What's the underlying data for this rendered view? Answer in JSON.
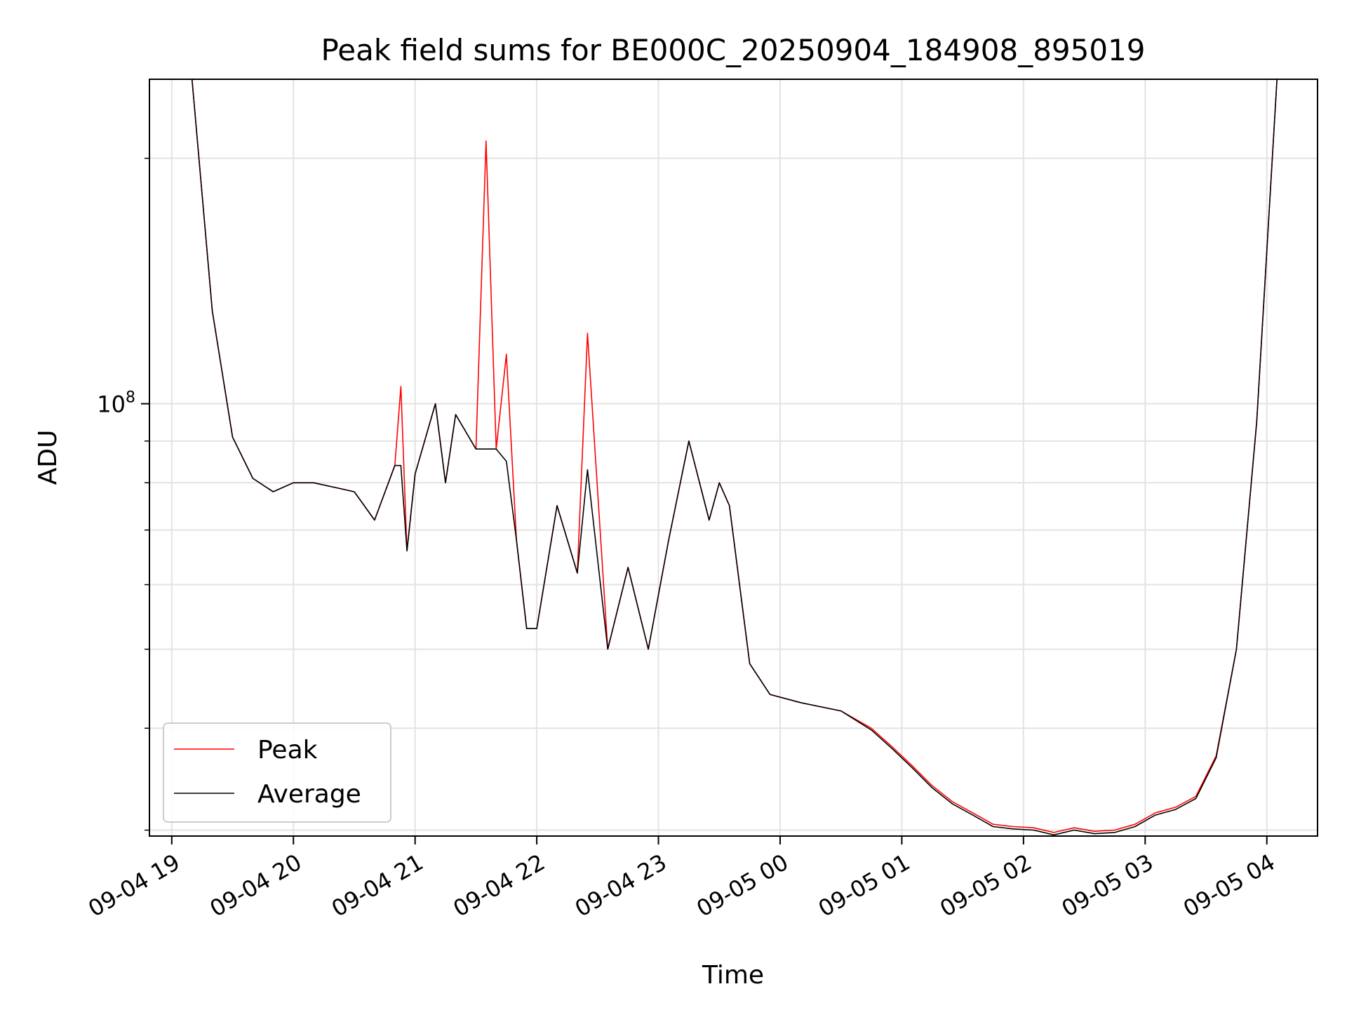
{
  "chart_data": {
    "type": "line",
    "title": "Peak field sums for BE000C_20250904_184908_895019",
    "xlabel": "Time",
    "ylabel": "ADU",
    "y_scale": "log",
    "grid": true,
    "legend_position": "lower-left",
    "x_ticks": [
      "09-04 19",
      "09-04 20",
      "09-04 21",
      "09-04 22",
      "09-04 23",
      "09-05 00",
      "09-05 01",
      "09-05 02",
      "09-05 03",
      "09-05 04"
    ],
    "y_tick_major": "10^8",
    "y_tick_major_value": 100000000,
    "y_ticks_minor": [
      30000000,
      40000000,
      50000000,
      60000000,
      70000000,
      80000000,
      90000000,
      200000000
    ],
    "ylim": [
      29500000,
      250000000
    ],
    "xlim": [
      "2025-09-04 18:49",
      "2025-09-05 04:25"
    ],
    "series": [
      {
        "name": "Peak",
        "color": "#ff0000",
        "x": [
          "2025-09-04 19:10",
          "2025-09-04 19:20",
          "2025-09-04 19:30",
          "2025-09-04 19:40",
          "2025-09-04 19:50",
          "2025-09-04 20:00",
          "2025-09-04 20:10",
          "2025-09-04 20:20",
          "2025-09-04 20:30",
          "2025-09-04 20:40",
          "2025-09-04 20:50",
          "2025-09-04 20:53",
          "2025-09-04 20:56",
          "2025-09-04 21:00",
          "2025-09-04 21:10",
          "2025-09-04 21:15",
          "2025-09-04 21:20",
          "2025-09-04 21:30",
          "2025-09-04 21:35",
          "2025-09-04 21:40",
          "2025-09-04 21:45",
          "2025-09-04 21:50",
          "2025-09-04 21:55",
          "2025-09-04 22:00",
          "2025-09-04 22:10",
          "2025-09-04 22:20",
          "2025-09-04 22:25",
          "2025-09-04 22:35",
          "2025-09-04 22:45",
          "2025-09-04 22:55",
          "2025-09-04 23:05",
          "2025-09-04 23:15",
          "2025-09-04 23:25",
          "2025-09-04 23:30",
          "2025-09-04 23:35",
          "2025-09-04 23:45",
          "2025-09-04 23:55",
          "2025-09-05 00:10",
          "2025-09-05 00:30",
          "2025-09-05 00:45",
          "2025-09-05 00:55",
          "2025-09-05 01:05",
          "2025-09-05 01:15",
          "2025-09-05 01:25",
          "2025-09-05 01:35",
          "2025-09-05 01:45",
          "2025-09-05 01:55",
          "2025-09-05 02:05",
          "2025-09-05 02:15",
          "2025-09-05 02:25",
          "2025-09-05 02:35",
          "2025-09-05 02:45",
          "2025-09-05 02:55",
          "2025-09-05 03:05",
          "2025-09-05 03:15",
          "2025-09-05 03:25",
          "2025-09-05 03:35",
          "2025-09-05 03:45",
          "2025-09-05 03:55",
          "2025-09-05 04:05"
        ],
        "values": [
          250000000,
          130000000,
          91000000,
          81000000,
          78000000,
          80000000,
          80000000,
          79000000,
          78000000,
          72000000,
          84000000,
          105000000,
          66000000,
          82000000,
          100000000,
          80000000,
          97000000,
          88000000,
          210000000,
          88000000,
          115000000,
          68000000,
          53000000,
          53000000,
          75000000,
          62000000,
          122000000,
          50000000,
          63000000,
          50000000,
          68000000,
          90000000,
          72000000,
          80000000,
          75000000,
          48000000,
          44000000,
          43000000,
          42000000,
          40000000,
          38000000,
          36000000,
          34000000,
          32500000,
          31500000,
          30500000,
          30300000,
          30200000,
          29800000,
          30200000,
          29900000,
          30000000,
          30500000,
          31500000,
          32000000,
          33000000,
          37000000,
          50000000,
          95000000,
          250000000
        ]
      },
      {
        "name": "Average",
        "color": "#000000",
        "x": [
          "2025-09-04 19:10",
          "2025-09-04 19:20",
          "2025-09-04 19:30",
          "2025-09-04 19:40",
          "2025-09-04 19:50",
          "2025-09-04 20:00",
          "2025-09-04 20:10",
          "2025-09-04 20:20",
          "2025-09-04 20:30",
          "2025-09-04 20:40",
          "2025-09-04 20:50",
          "2025-09-04 20:53",
          "2025-09-04 20:56",
          "2025-09-04 21:00",
          "2025-09-04 21:10",
          "2025-09-04 21:15",
          "2025-09-04 21:20",
          "2025-09-04 21:30",
          "2025-09-04 21:35",
          "2025-09-04 21:40",
          "2025-09-04 21:45",
          "2025-09-04 21:50",
          "2025-09-04 21:55",
          "2025-09-04 22:00",
          "2025-09-04 22:10",
          "2025-09-04 22:20",
          "2025-09-04 22:25",
          "2025-09-04 22:35",
          "2025-09-04 22:45",
          "2025-09-04 22:55",
          "2025-09-04 23:05",
          "2025-09-04 23:15",
          "2025-09-04 23:25",
          "2025-09-04 23:30",
          "2025-09-04 23:35",
          "2025-09-04 23:45",
          "2025-09-04 23:55",
          "2025-09-05 00:10",
          "2025-09-05 00:30",
          "2025-09-05 00:45",
          "2025-09-05 00:55",
          "2025-09-05 01:05",
          "2025-09-05 01:15",
          "2025-09-05 01:25",
          "2025-09-05 01:35",
          "2025-09-05 01:45",
          "2025-09-05 01:55",
          "2025-09-05 02:05",
          "2025-09-05 02:15",
          "2025-09-05 02:25",
          "2025-09-05 02:35",
          "2025-09-05 02:45",
          "2025-09-05 02:55",
          "2025-09-05 03:05",
          "2025-09-05 03:15",
          "2025-09-05 03:25",
          "2025-09-05 03:35",
          "2025-09-05 03:45",
          "2025-09-05 03:55",
          "2025-09-05 04:05"
        ],
        "values": [
          250000000,
          130000000,
          91000000,
          81000000,
          78000000,
          80000000,
          80000000,
          79000000,
          78000000,
          72000000,
          84000000,
          84000000,
          66000000,
          82000000,
          100000000,
          80000000,
          97000000,
          88000000,
          88000000,
          88000000,
          85000000,
          68000000,
          53000000,
          53000000,
          75000000,
          62000000,
          83000000,
          50000000,
          63000000,
          50000000,
          68000000,
          90000000,
          72000000,
          80000000,
          75000000,
          48000000,
          44000000,
          43000000,
          42000000,
          39800000,
          37800000,
          35800000,
          33800000,
          32300000,
          31300000,
          30300000,
          30100000,
          30000000,
          29600000,
          30000000,
          29700000,
          29800000,
          30300000,
          31300000,
          31800000,
          32800000,
          36800000,
          50000000,
          95000000,
          250000000
        ]
      }
    ]
  }
}
